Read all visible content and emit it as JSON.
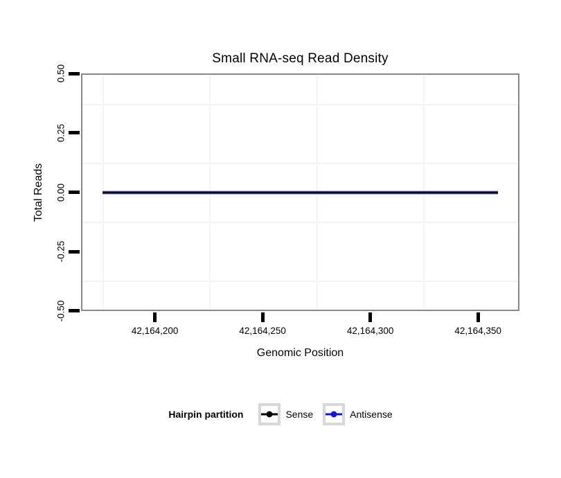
{
  "figure": {
    "background": "#ffffff",
    "panel_border_color": "#898989",
    "minor_grid_color": "#f4f4f4"
  },
  "chart_data": {
    "type": "line",
    "title": "Small RNA-seq Read Density",
    "xlabel": "Genomic Position",
    "ylabel": "Total Reads",
    "xlim": [
      42164166,
      42164369
    ],
    "ylim": [
      -0.5,
      0.5
    ],
    "x_ticks": [
      42164200,
      42164250,
      42164300,
      42164350
    ],
    "x_tick_labels": [
      "42,164,200",
      "42,164,250",
      "42,164,300",
      "42,164,350"
    ],
    "x_minor_gridlines": [
      42164175,
      42164225,
      42164275,
      42164325
    ],
    "y_ticks": [
      0.5,
      0.25,
      0.0,
      -0.25,
      -0.5
    ],
    "y_tick_labels": [
      "0.50",
      "0.25",
      "0.00",
      "-0.25",
      "-0.50"
    ],
    "y_minor_gridlines": [
      0.375,
      0.125,
      -0.125,
      -0.375
    ],
    "grid": "minor gridlines only; major gridlines not visible",
    "series": [
      {
        "name": "Sense",
        "color": "#000000",
        "x_start": 42164175,
        "x_end": 42164360,
        "y_value": 0
      },
      {
        "name": "Antisense",
        "color": "#1414e0",
        "x_start": 42164175,
        "x_end": 42164360,
        "y_value": 0
      }
    ],
    "legend": {
      "title": "Hairpin partition",
      "position": "bottom",
      "entries": [
        "Sense",
        "Antisense"
      ]
    }
  }
}
